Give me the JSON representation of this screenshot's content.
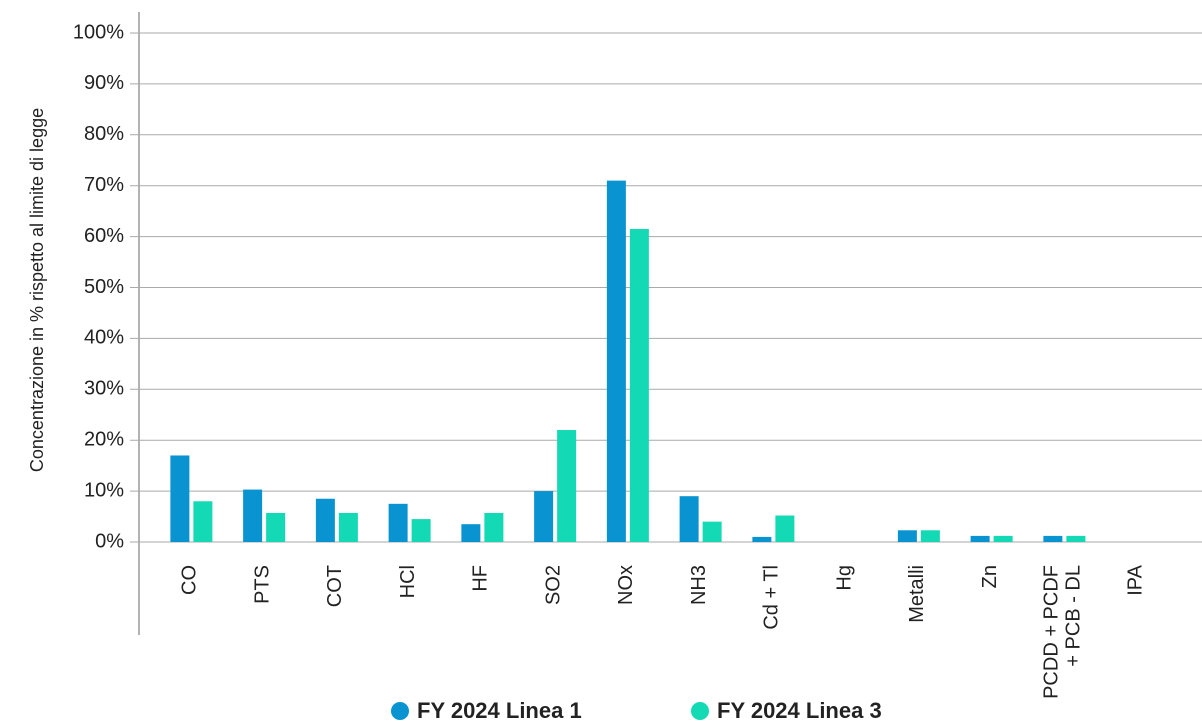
{
  "chart_data": {
    "type": "bar",
    "y_label": "Concentrazione in % rispetto al limite di legge",
    "categories": [
      "CO",
      "PTS",
      "COT",
      "HCl",
      "HF",
      "SO2",
      "NOx",
      "NH3",
      "Cd + Tl",
      "Hg",
      "Metalli",
      "Zn",
      [
        "PCDD + PCDF",
        "+ PCB - DL"
      ],
      "IPA"
    ],
    "series": [
      {
        "name": "FY 2024 Linea 1",
        "color": "#0a93d1",
        "values": [
          17,
          10.3,
          8.5,
          7.5,
          3.5,
          10,
          71,
          9,
          1,
          0,
          2.3,
          1.2,
          1.2,
          0
        ]
      },
      {
        "name": "FY 2024 Linea 3",
        "color": "#14d9b5",
        "values": [
          8,
          5.7,
          5.7,
          4.5,
          5.7,
          22,
          61.5,
          4,
          5.2,
          0,
          2.3,
          1.2,
          1.2,
          0
        ]
      }
    ],
    "ylim": [
      0,
      100
    ],
    "yticks": [
      {
        "value": 0,
        "label": "0%"
      },
      {
        "value": 10,
        "label": "10%"
      },
      {
        "value": 20,
        "label": "20%"
      },
      {
        "value": 30,
        "label": "30%"
      },
      {
        "value": 40,
        "label": "40%"
      },
      {
        "value": 50,
        "label": "50%"
      },
      {
        "value": 60,
        "label": "60%"
      },
      {
        "value": 70,
        "label": "70%"
      },
      {
        "value": 80,
        "label": "80%"
      },
      {
        "value": 90,
        "label": "90%"
      },
      {
        "value": 100,
        "label": "100%"
      }
    ],
    "grid": true
  }
}
